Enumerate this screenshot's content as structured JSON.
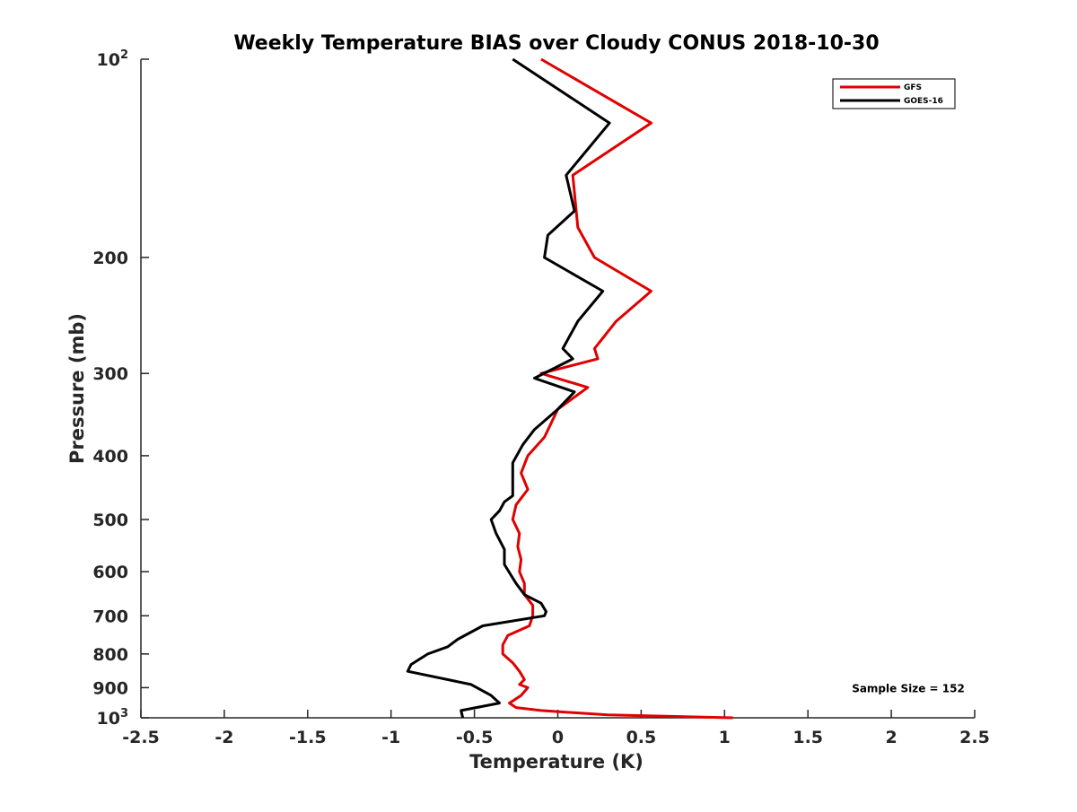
{
  "chart_data": {
    "type": "line",
    "title": "Weekly Temperature BIAS over Cloudy CONUS 2018-10-30",
    "xlabel": "Temperature (K)",
    "ylabel": "Pressure (mb)",
    "xlim": [
      -2.5,
      2.5
    ],
    "ylim": [
      100,
      1000
    ],
    "y_scale": "log",
    "y_reversed": true,
    "grid": false,
    "legend_position": "top-right",
    "x_ticks": [
      {
        "value": -2.5,
        "label": "-2.5"
      },
      {
        "value": -2,
        "label": "-2"
      },
      {
        "value": -1.5,
        "label": "-1.5"
      },
      {
        "value": -1,
        "label": "-1"
      },
      {
        "value": -0.5,
        "label": "-0.5"
      },
      {
        "value": 0,
        "label": "0"
      },
      {
        "value": 0.5,
        "label": "0.5"
      },
      {
        "value": 1,
        "label": "1"
      },
      {
        "value": 1.5,
        "label": "1.5"
      },
      {
        "value": 2,
        "label": "2"
      },
      {
        "value": 2.5,
        "label": "2.5"
      }
    ],
    "y_ticks": [
      {
        "value": 100,
        "base": "10",
        "exp": "2"
      },
      {
        "value": 200,
        "label": "200"
      },
      {
        "value": 300,
        "label": "300"
      },
      {
        "value": 400,
        "label": "400"
      },
      {
        "value": 500,
        "label": "500"
      },
      {
        "value": 600,
        "label": "600"
      },
      {
        "value": 700,
        "label": "700"
      },
      {
        "value": 800,
        "label": "800"
      },
      {
        "value": 900,
        "label": "900"
      },
      {
        "value": 1000,
        "base": "10",
        "exp": "3"
      }
    ],
    "series": [
      {
        "name": "GFS",
        "color": "#e00000",
        "points": [
          [
            -0.1,
            100
          ],
          [
            0.56,
            125
          ],
          [
            0.09,
            150
          ],
          [
            0.12,
            180
          ],
          [
            0.22,
            200
          ],
          [
            0.56,
            225
          ],
          [
            0.35,
            250
          ],
          [
            0.22,
            275
          ],
          [
            0.24,
            285
          ],
          [
            -0.1,
            300
          ],
          [
            0.18,
            315
          ],
          [
            0.0,
            340
          ],
          [
            -0.08,
            375
          ],
          [
            -0.18,
            400
          ],
          [
            -0.22,
            425
          ],
          [
            -0.18,
            450
          ],
          [
            -0.25,
            475
          ],
          [
            -0.27,
            500
          ],
          [
            -0.23,
            525
          ],
          [
            -0.24,
            550
          ],
          [
            -0.22,
            575
          ],
          [
            -0.23,
            600
          ],
          [
            -0.2,
            625
          ],
          [
            -0.2,
            650
          ],
          [
            -0.15,
            675
          ],
          [
            -0.15,
            700
          ],
          [
            -0.17,
            725
          ],
          [
            -0.3,
            750
          ],
          [
            -0.33,
            775
          ],
          [
            -0.33,
            800
          ],
          [
            -0.27,
            825
          ],
          [
            -0.23,
            850
          ],
          [
            -0.2,
            875
          ],
          [
            -0.23,
            890
          ],
          [
            -0.18,
            900
          ],
          [
            -0.22,
            925
          ],
          [
            -0.29,
            950
          ],
          [
            -0.25,
            965
          ],
          [
            -0.1,
            975
          ],
          [
            0.3,
            990
          ],
          [
            1.05,
            1000
          ]
        ]
      },
      {
        "name": "GOES-16",
        "color": "#000000",
        "points": [
          [
            -0.27,
            100
          ],
          [
            0.31,
            125
          ],
          [
            0.05,
            150
          ],
          [
            0.1,
            170
          ],
          [
            -0.06,
            185
          ],
          [
            -0.08,
            200
          ],
          [
            0.27,
            225
          ],
          [
            0.12,
            250
          ],
          [
            0.03,
            275
          ],
          [
            0.09,
            285
          ],
          [
            -0.14,
            305
          ],
          [
            0.1,
            320
          ],
          [
            0.0,
            340
          ],
          [
            -0.14,
            365
          ],
          [
            -0.21,
            385
          ],
          [
            -0.27,
            410
          ],
          [
            -0.27,
            435
          ],
          [
            -0.27,
            460
          ],
          [
            -0.32,
            470
          ],
          [
            -0.35,
            485
          ],
          [
            -0.4,
            500
          ],
          [
            -0.37,
            525
          ],
          [
            -0.32,
            555
          ],
          [
            -0.32,
            585
          ],
          [
            -0.25,
            625
          ],
          [
            -0.2,
            650
          ],
          [
            -0.1,
            670
          ],
          [
            -0.07,
            690
          ],
          [
            -0.08,
            700
          ],
          [
            -0.45,
            725
          ],
          [
            -0.6,
            760
          ],
          [
            -0.66,
            780
          ],
          [
            -0.78,
            800
          ],
          [
            -0.88,
            830
          ],
          [
            -0.9,
            850
          ],
          [
            -0.52,
            890
          ],
          [
            -0.4,
            925
          ],
          [
            -0.35,
            950
          ],
          [
            -0.58,
            975
          ],
          [
            -0.57,
            1000
          ]
        ]
      }
    ],
    "annotations": [
      {
        "text": "Sample Size = 152",
        "x": 1.5,
        "y": 900
      }
    ]
  }
}
